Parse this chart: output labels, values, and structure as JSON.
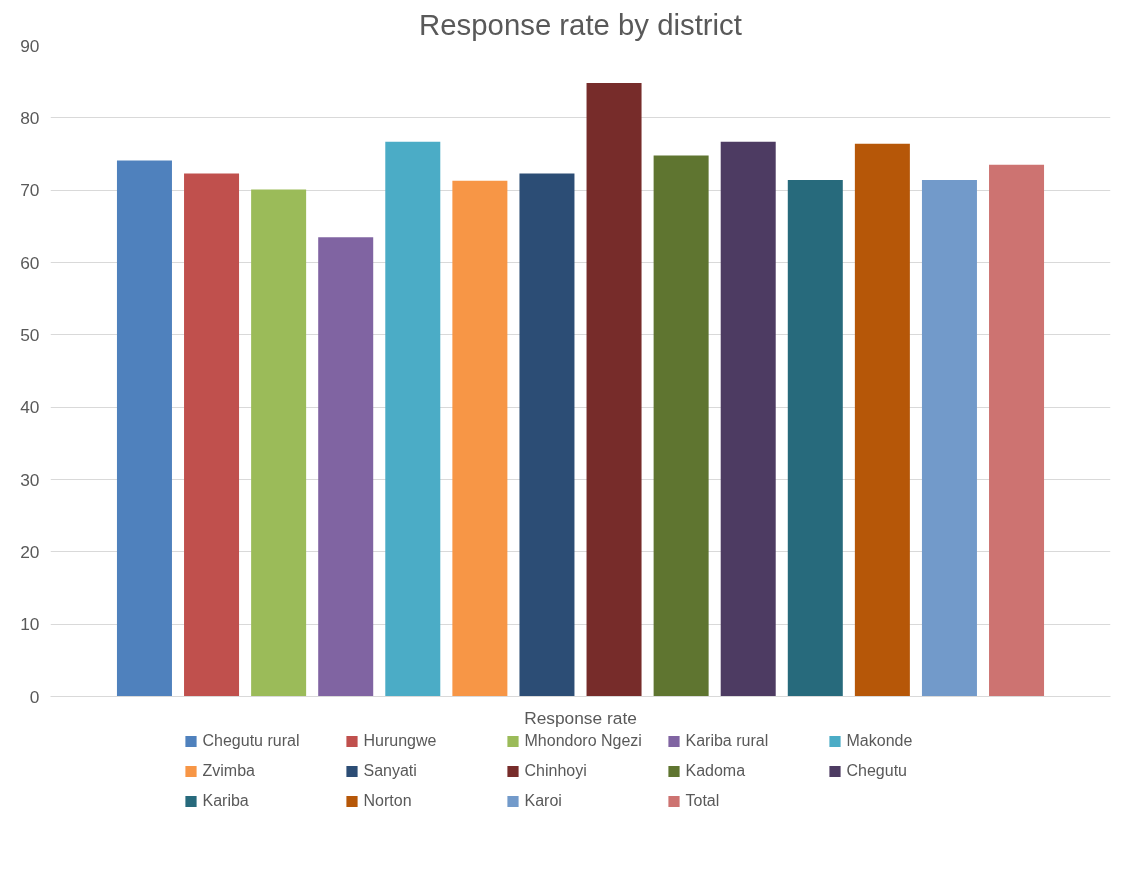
{
  "chart_data": {
    "type": "bar",
    "title": "Response rate by district",
    "categories": [
      "Response rate"
    ],
    "series": [
      {
        "name": "Chegutu rural",
        "color": "#4f81bd",
        "values": [
          74.1
        ]
      },
      {
        "name": "Hurungwe",
        "color": "#c0504d",
        "values": [
          72.3
        ]
      },
      {
        "name": "Mhondoro Ngezi",
        "color": "#9bbb59",
        "values": [
          70.1
        ]
      },
      {
        "name": "Kariba rural",
        "color": "#8064a2",
        "values": [
          63.5
        ]
      },
      {
        "name": "Makonde",
        "color": "#4bacc6",
        "values": [
          76.7
        ]
      },
      {
        "name": "Zvimba",
        "color": "#f79646",
        "values": [
          71.3
        ]
      },
      {
        "name": "Sanyati",
        "color": "#2c4d75",
        "values": [
          72.3
        ]
      },
      {
        "name": "Chinhoyi",
        "color": "#772c2a",
        "values": [
          84.8
        ]
      },
      {
        "name": "Kadoma",
        "color": "#5f7530",
        "values": [
          74.8
        ]
      },
      {
        "name": "Chegutu",
        "color": "#4d3b62",
        "values": [
          76.7
        ]
      },
      {
        "name": "Kariba",
        "color": "#276a7c",
        "values": [
          71.4
        ]
      },
      {
        "name": "Norton",
        "color": "#b65708",
        "values": [
          76.4
        ]
      },
      {
        "name": "Karoi",
        "color": "#729aca",
        "values": [
          71.4
        ]
      },
      {
        "name": "Total",
        "color": "#cd7371",
        "values": [
          73.5
        ]
      }
    ],
    "ylim": [
      0,
      90
    ],
    "yticks": [
      0,
      10,
      20,
      30,
      40,
      50,
      60,
      70,
      80,
      90
    ],
    "grid": "y",
    "legend": "bottom"
  }
}
